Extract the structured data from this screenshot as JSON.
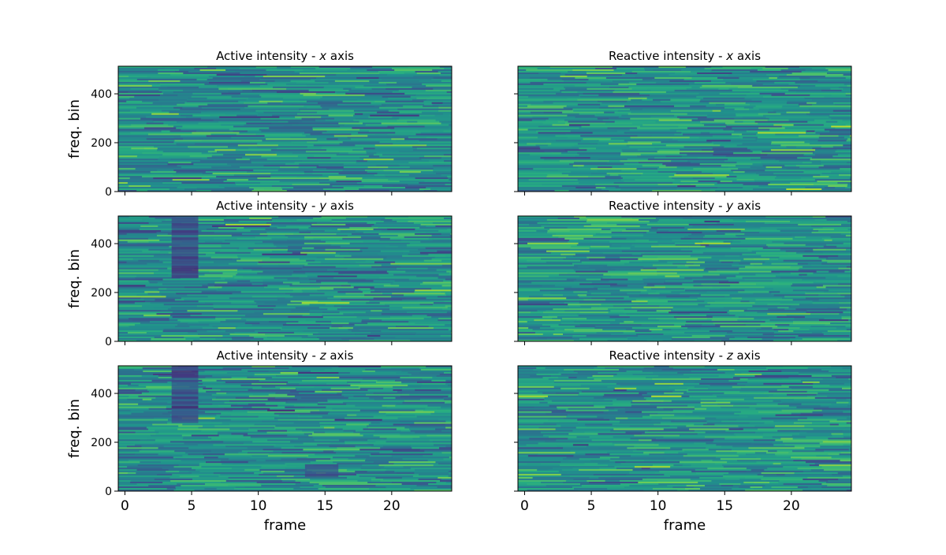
{
  "chart_data": {
    "type": "heatmap",
    "colormap": "viridis",
    "shared_x_axis": true,
    "shared_y_axis": true,
    "layout": "3 rows x 2 columns",
    "xlim": [
      -0.5,
      24.5
    ],
    "ylim": [
      0,
      513
    ],
    "x_ticks": [
      0,
      5,
      10,
      15,
      20
    ],
    "y_ticks": [
      0,
      200,
      400
    ],
    "xlabel": "frame",
    "ylabel": "freq. bin",
    "panels": [
      {
        "title_prefix": "Active intensity - ",
        "axis_letter": "x",
        "title_suffix": " axis",
        "column": 0,
        "row": 0,
        "features": []
      },
      {
        "title_prefix": "Reactive intensity - ",
        "axis_letter": "x",
        "title_suffix": " axis",
        "column": 1,
        "row": 0,
        "features": []
      },
      {
        "title_prefix": "Active intensity - ",
        "axis_letter": "y",
        "title_suffix": " axis",
        "column": 0,
        "row": 1,
        "features": [
          {
            "x": [
              3.5,
              5.5
            ],
            "y": [
              260,
              513
            ],
            "level": "low"
          }
        ]
      },
      {
        "title_prefix": "Reactive intensity - ",
        "axis_letter": "y",
        "title_suffix": " axis",
        "column": 1,
        "row": 1,
        "features": []
      },
      {
        "title_prefix": "Active intensity - ",
        "axis_letter": "z",
        "title_suffix": " axis",
        "column": 0,
        "row": 2,
        "features": [
          {
            "x": [
              3.5,
              5.5
            ],
            "y": [
              280,
              513
            ],
            "level": "low"
          },
          {
            "x": [
              13.5,
              16
            ],
            "y": [
              60,
              110
            ],
            "level": "low"
          }
        ]
      },
      {
        "title_prefix": "Reactive intensity - ",
        "axis_letter": "z",
        "title_suffix": " axis",
        "column": 1,
        "row": 2,
        "features": []
      }
    ]
  }
}
